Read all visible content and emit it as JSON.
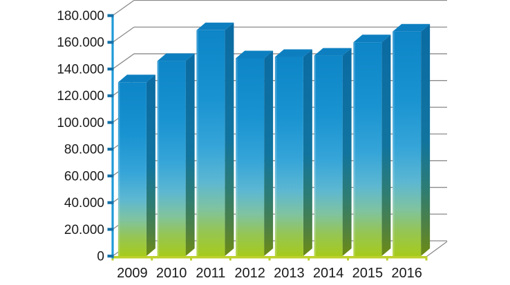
{
  "chart_data": {
    "type": "bar",
    "variant": "3d-column",
    "title": "",
    "xlabel": "",
    "ylabel": "",
    "legend": false,
    "grid": true,
    "categories": [
      "2009",
      "2010",
      "2011",
      "2012",
      "2013",
      "2014",
      "2015",
      "2016"
    ],
    "values": [
      130000,
      146000,
      169000,
      148000,
      149000,
      150000,
      160000,
      168000
    ],
    "ylim": [
      0,
      180000
    ],
    "ytick_step": 20000,
    "ytick_labels": [
      "0",
      "20.000",
      "40.000",
      "60.000",
      "80.000",
      "100.000",
      "120.000",
      "140.000",
      "160.000",
      "180.000"
    ],
    "number_format": "thousands-dot",
    "colors": {
      "background": "#ffffff",
      "gridline": "#8a8a8a",
      "value_axis": "#1f9bd7",
      "value_axis_tick": "#1470a8",
      "category_axis": "#bdd02c",
      "label": "#1a1a1a",
      "bar_top_face": "#0d7fc0",
      "bar_front_gradient": [
        {
          "offset": "0%",
          "color": "#0d85c7"
        },
        {
          "offset": "30%",
          "color": "#1993d1"
        },
        {
          "offset": "52%",
          "color": "#36a5d8"
        },
        {
          "offset": "67%",
          "color": "#5cb7d2"
        },
        {
          "offset": "79%",
          "color": "#7fc3a0"
        },
        {
          "offset": "89%",
          "color": "#95c554"
        },
        {
          "offset": "100%",
          "color": "#a6cb1c"
        }
      ],
      "bar_side_gradient": [
        {
          "offset": "0%",
          "color": "#0a6ba3"
        },
        {
          "offset": "50%",
          "color": "#11749f"
        },
        {
          "offset": "72%",
          "color": "#2f7d72"
        },
        {
          "offset": "87%",
          "color": "#4f8142"
        },
        {
          "offset": "100%",
          "color": "#6d8b13"
        }
      ]
    }
  }
}
